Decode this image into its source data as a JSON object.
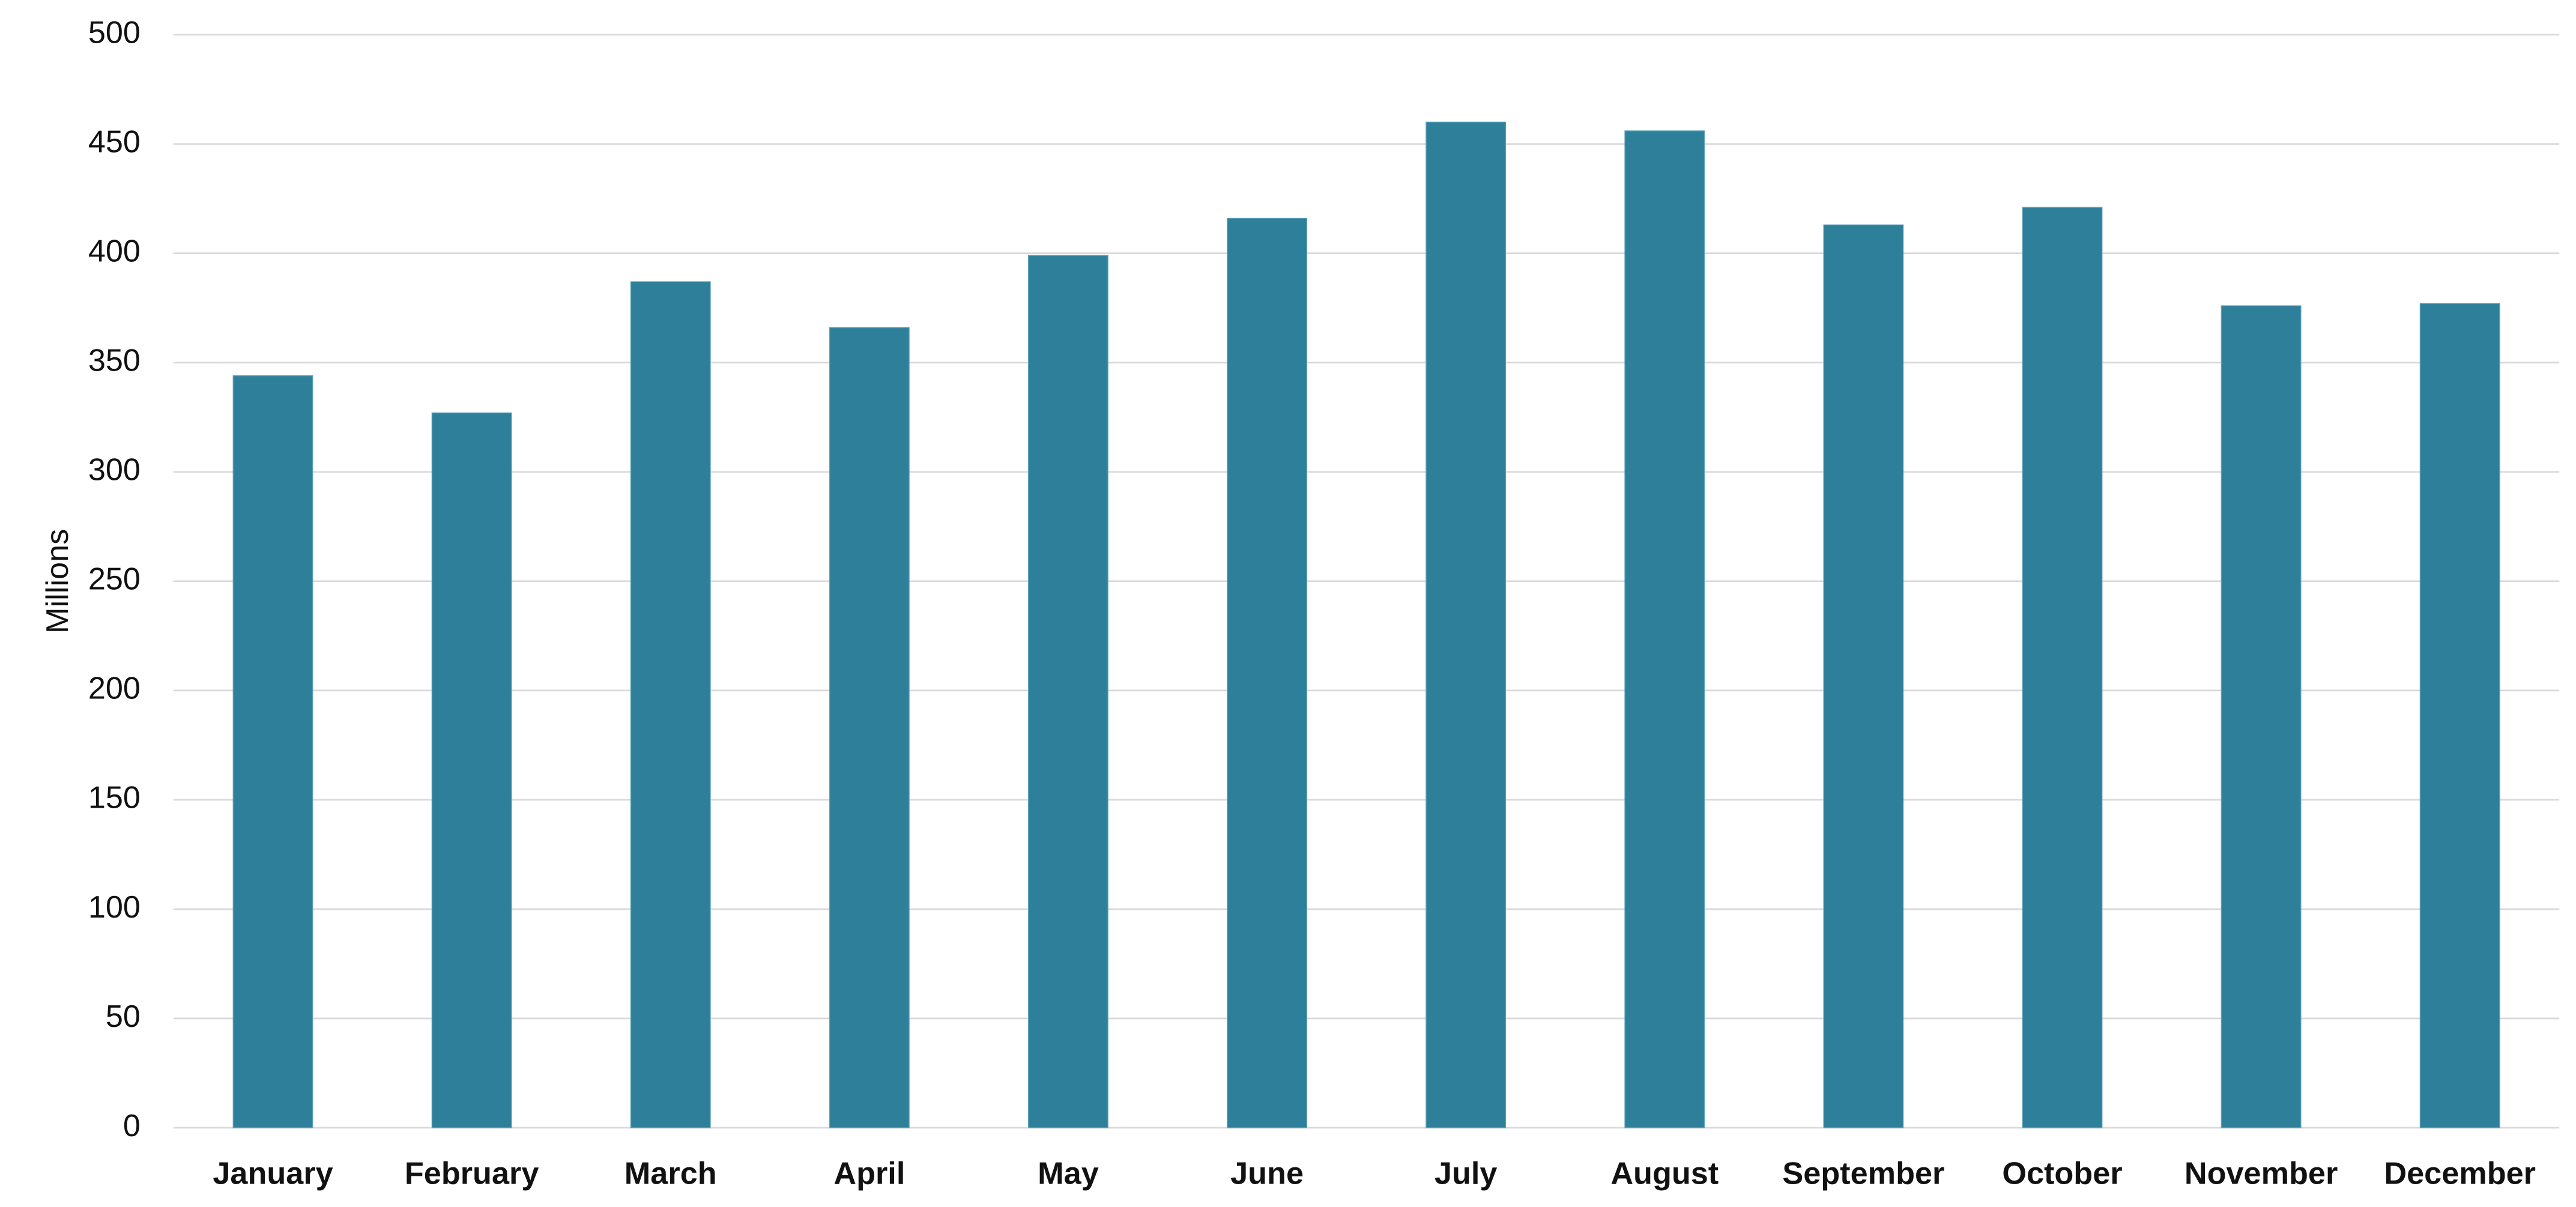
{
  "chart_data": {
    "type": "bar",
    "y_label": "Millions",
    "categories": [
      "January",
      "February",
      "March",
      "April",
      "May",
      "June",
      "July",
      "August",
      "September",
      "October",
      "November",
      "December"
    ],
    "values": [
      344,
      327,
      387,
      366,
      399,
      416,
      460,
      456,
      413,
      421,
      376,
      377
    ],
    "color": "#2e7f9a",
    "ylim": [
      0,
      500
    ],
    "yticks": [
      0,
      50,
      100,
      150,
      200,
      250,
      300,
      350,
      400,
      450,
      500
    ],
    "grid": true
  }
}
